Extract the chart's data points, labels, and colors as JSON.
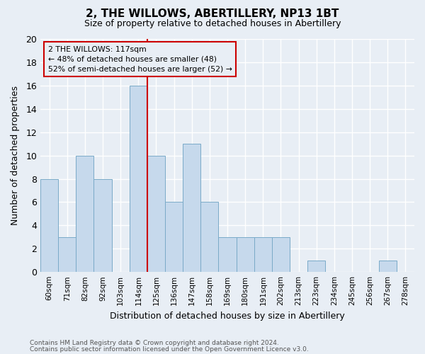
{
  "title": "2, THE WILLOWS, ABERTILLERY, NP13 1BT",
  "subtitle": "Size of property relative to detached houses in Abertillery",
  "xlabel": "Distribution of detached houses by size in Abertillery",
  "ylabel": "Number of detached properties",
  "bar_labels": [
    "60sqm",
    "71sqm",
    "82sqm",
    "92sqm",
    "103sqm",
    "114sqm",
    "125sqm",
    "136sqm",
    "147sqm",
    "158sqm",
    "169sqm",
    "180sqm",
    "191sqm",
    "202sqm",
    "213sqm",
    "223sqm",
    "234sqm",
    "245sqm",
    "256sqm",
    "267sqm",
    "278sqm"
  ],
  "bar_values": [
    8,
    3,
    10,
    8,
    0,
    16,
    10,
    6,
    11,
    6,
    3,
    3,
    3,
    3,
    0,
    1,
    0,
    0,
    0,
    1,
    0
  ],
  "bar_color": "#c6d9ec",
  "bar_edge_color": "#7aaac8",
  "property_line_x": 5.5,
  "annotation_line1": "2 THE WILLOWS: 117sqm",
  "annotation_line2": "← 48% of detached houses are smaller (48)",
  "annotation_line3": "52% of semi-detached houses are larger (52) →",
  "annotation_box_color": "#cc0000",
  "ylim": [
    0,
    20
  ],
  "yticks": [
    0,
    2,
    4,
    6,
    8,
    10,
    12,
    14,
    16,
    18,
    20
  ],
  "footnote1": "Contains HM Land Registry data © Crown copyright and database right 2024.",
  "footnote2": "Contains public sector information licensed under the Open Government Licence v3.0.",
  "background_color": "#e8eef5",
  "grid_color": "#ffffff",
  "title_fontsize": 11,
  "subtitle_fontsize": 9
}
